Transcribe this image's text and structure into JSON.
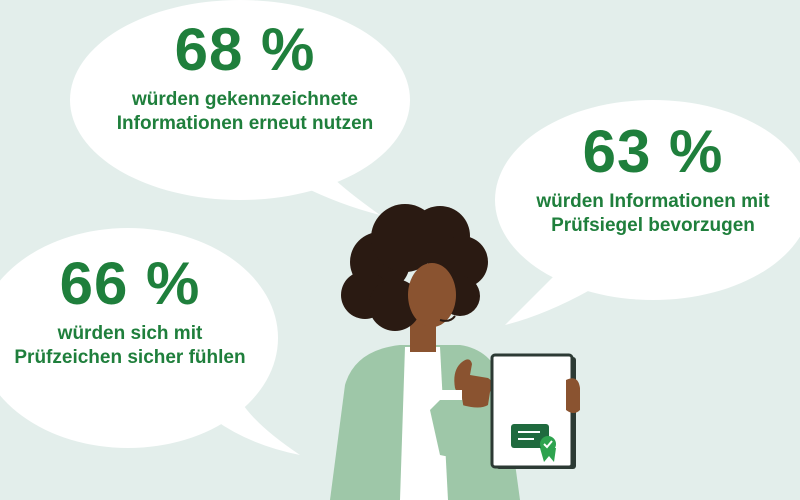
{
  "bubbles": [
    {
      "percent": "68 %",
      "text": "würden gekennzeichnete Informationen erneut nutzen"
    },
    {
      "percent": "63 %",
      "text": "würden Informationen mit Prüfsiegel bevorzugen"
    },
    {
      "percent": "66 %",
      "text": "würden sich mit Prüfzeichen sicher fühlen"
    }
  ],
  "colors": {
    "background": "#e3eeeb",
    "bubble": "#ffffff",
    "accent_green": "#1f7f3c",
    "jacket": "#9ec7a8",
    "skin": "#8a5330",
    "hair": "#2a1a12",
    "certificate_badge": "#1f6a3e"
  },
  "icons": [
    "speech-bubble-icon",
    "certificate-icon",
    "seal-checkmark-icon"
  ]
}
